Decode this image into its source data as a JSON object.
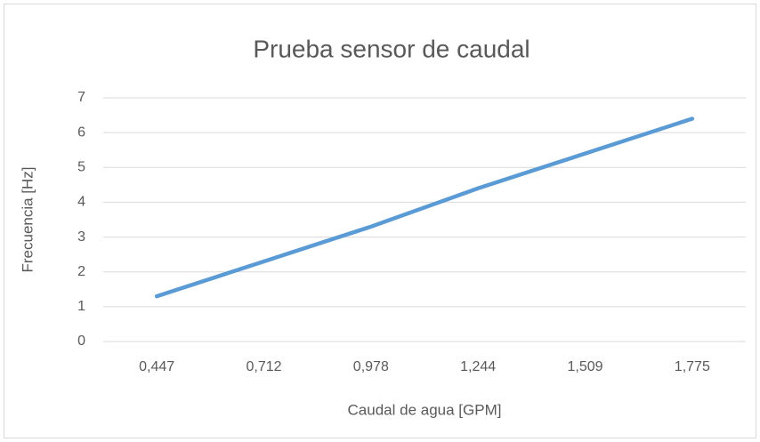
{
  "chart_data": {
    "type": "line",
    "title": "Prueba sensor de caudal",
    "x_label": "Caudal de agua [GPM]",
    "y_label": "Frecuencia [Hz]",
    "categories": [
      "0,447",
      "0,712",
      "0,978",
      "1,244",
      "1,509",
      "1,775"
    ],
    "series": [
      {
        "name": "Frecuencia",
        "color": "#5b9bd5",
        "values": [
          1.3,
          2.3,
          3.3,
          4.4,
          5.4,
          6.4
        ]
      }
    ],
    "ylim": [
      0,
      7
    ],
    "yticks": [
      0,
      1,
      2,
      3,
      4,
      5,
      6,
      7
    ],
    "grid": true,
    "legend": false
  }
}
